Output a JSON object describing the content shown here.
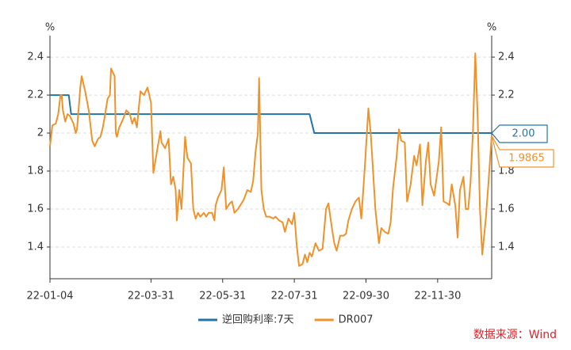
{
  "chart_data": {
    "type": "line",
    "y_unit": "%",
    "y2_unit": "%",
    "source": "数据来源：Wind",
    "xlim": [
      0,
      376
    ],
    "xticks": [
      {
        "value": 0,
        "label": "22-01-04"
      },
      {
        "value": 86,
        "label": "22-03-31"
      },
      {
        "value": 147,
        "label": "22-05-31"
      },
      {
        "value": 208,
        "label": "22-07-31"
      },
      {
        "value": 269,
        "label": "22-09-30"
      },
      {
        "value": 330,
        "label": "22-11-30"
      }
    ],
    "ylim": [
      1.233,
      2.513
    ],
    "yticks": [
      1.4,
      1.6,
      1.8,
      2,
      2.2,
      2.4
    ],
    "y2lim": [
      1.233,
      2.513
    ],
    "y2ticks": [
      1.4,
      1.6,
      1.8,
      2,
      2.2,
      2.4
    ],
    "grid": true,
    "legend": "bottom",
    "series": [
      {
        "name": "逆回购利率:7天",
        "color": "#2574a9",
        "end_label": "2.00",
        "x": [
          0,
          16,
          18,
          221,
          225,
          376
        ],
        "values": [
          2.2,
          2.2,
          2.1,
          2.1,
          2.0,
          2.0
        ]
      },
      {
        "name": "DR007",
        "color": "#f0922b",
        "end_label": "1.9865",
        "x": [
          0,
          2,
          5,
          7,
          9,
          10,
          11,
          13,
          15,
          17,
          20,
          22,
          23,
          24,
          26,
          27,
          30,
          33,
          36,
          38,
          41,
          43,
          45,
          47,
          49,
          51,
          52,
          55,
          56,
          57,
          59,
          62,
          65,
          68,
          70,
          72,
          74,
          77,
          80,
          83,
          86,
          88,
          91,
          94,
          95,
          98,
          101,
          103,
          105,
          107,
          108,
          110,
          112,
          115,
          117,
          120,
          122,
          124,
          126,
          128,
          131,
          133,
          135,
          138,
          140,
          141,
          143,
          146,
          148,
          150,
          153,
          155,
          157,
          160,
          163,
          165,
          168,
          171,
          173,
          175,
          177,
          178,
          180,
          182,
          184,
          187,
          190,
          192,
          195,
          198,
          200,
          203,
          206,
          208,
          210,
          212,
          215,
          217,
          219,
          221,
          223,
          226,
          229,
          232,
          235,
          237,
          240,
          242,
          244,
          247,
          250,
          252,
          254,
          257,
          260,
          263,
          265,
          268,
          271,
          273,
          275,
          277,
          280,
          282,
          285,
          288,
          290,
          292,
          295,
          297,
          299,
          302,
          304,
          307,
          310,
          312,
          315,
          317,
          320,
          322,
          324,
          327,
          329,
          331,
          333,
          335,
          338,
          340,
          342,
          345,
          347,
          349,
          352,
          354,
          356,
          358,
          360,
          362,
          364,
          366,
          368,
          371,
          373,
          376
        ],
        "values": [
          1.93,
          2.04,
          2.05,
          2.1,
          2.2,
          2.2,
          2.12,
          2.06,
          2.1,
          2.09,
          2.05,
          2.0,
          2.02,
          2.1,
          2.25,
          2.3,
          2.22,
          2.12,
          1.96,
          1.93,
          1.97,
          1.98,
          2.03,
          2.1,
          2.18,
          2.2,
          2.34,
          2.3,
          2.0,
          1.98,
          2.03,
          2.07,
          2.12,
          2.1,
          2.05,
          2.08,
          2.03,
          2.22,
          2.2,
          2.24,
          2.16,
          1.79,
          1.9,
          2.01,
          1.95,
          1.92,
          1.97,
          1.73,
          1.77,
          1.7,
          1.54,
          1.7,
          1.6,
          1.98,
          1.87,
          1.84,
          1.6,
          1.55,
          1.58,
          1.56,
          1.58,
          1.56,
          1.58,
          1.58,
          1.54,
          1.62,
          1.66,
          1.7,
          1.82,
          1.6,
          1.63,
          1.64,
          1.58,
          1.6,
          1.63,
          1.65,
          1.7,
          1.69,
          1.75,
          1.9,
          2.0,
          2.29,
          1.7,
          1.6,
          1.56,
          1.56,
          1.55,
          1.56,
          1.54,
          1.53,
          1.48,
          1.55,
          1.52,
          1.58,
          1.41,
          1.3,
          1.31,
          1.36,
          1.32,
          1.37,
          1.35,
          1.42,
          1.38,
          1.39,
          1.6,
          1.63,
          1.5,
          1.42,
          1.38,
          1.46,
          1.46,
          1.47,
          1.54,
          1.6,
          1.64,
          1.66,
          1.55,
          1.82,
          2.13,
          2.0,
          1.8,
          1.6,
          1.42,
          1.5,
          1.48,
          1.47,
          1.53,
          1.71,
          1.87,
          2.02,
          1.96,
          1.95,
          1.64,
          1.73,
          1.88,
          1.83,
          1.94,
          1.62,
          1.85,
          1.95,
          1.73,
          1.67,
          1.76,
          1.85,
          2.03,
          1.64,
          1.63,
          1.62,
          1.73,
          1.62,
          1.45,
          1.7,
          1.77,
          1.6,
          1.6,
          1.74,
          2.0,
          2.42,
          2.1,
          1.6,
          1.36,
          1.55,
          1.72,
          1.9865
        ]
      }
    ]
  }
}
